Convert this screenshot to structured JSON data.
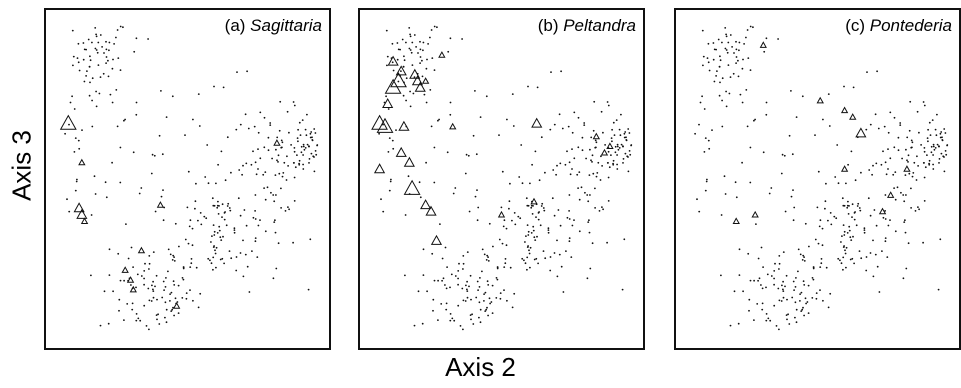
{
  "y_axis_label": "Axis 3",
  "x_axis_label": "Axis 2",
  "chart_data": [
    {
      "type": "scatter",
      "title": "(a) Sagittaria",
      "title_prefix": "(a)",
      "title_species": "Sagittaria",
      "xlabel": "Axis 2",
      "ylabel": "Axis 3",
      "marker_background": "dot",
      "marker_occurrence": "triangle (size = abundance)",
      "occurrences": [
        {
          "x": 0.06,
          "y": 0.67,
          "size": 3
        },
        {
          "x": 0.11,
          "y": 0.55,
          "size": 1
        },
        {
          "x": 0.1,
          "y": 0.41,
          "size": 2
        },
        {
          "x": 0.11,
          "y": 0.39,
          "size": 2
        },
        {
          "x": 0.12,
          "y": 0.37,
          "size": 1
        },
        {
          "x": 0.27,
          "y": 0.22,
          "size": 1
        },
        {
          "x": 0.29,
          "y": 0.19,
          "size": 1
        },
        {
          "x": 0.3,
          "y": 0.16,
          "size": 1
        },
        {
          "x": 0.46,
          "y": 0.11,
          "size": 1
        },
        {
          "x": 0.83,
          "y": 0.61,
          "size": 1
        },
        {
          "x": 0.4,
          "y": 0.42,
          "size": 1
        },
        {
          "x": 0.33,
          "y": 0.28,
          "size": 1
        }
      ]
    },
    {
      "type": "scatter",
      "title": "(b) Peltandra",
      "title_prefix": "(b)",
      "title_species": "Peltandra",
      "xlabel": "Axis 2",
      "ylabel": "Axis 3",
      "marker_background": "dot",
      "marker_occurrence": "triangle (size = abundance)",
      "occurrences": [
        {
          "x": 0.1,
          "y": 0.86,
          "size": 2
        },
        {
          "x": 0.13,
          "y": 0.83,
          "size": 2
        },
        {
          "x": 0.12,
          "y": 0.8,
          "size": 3
        },
        {
          "x": 0.1,
          "y": 0.78,
          "size": 3
        },
        {
          "x": 0.18,
          "y": 0.82,
          "size": 2
        },
        {
          "x": 0.19,
          "y": 0.8,
          "size": 2
        },
        {
          "x": 0.2,
          "y": 0.78,
          "size": 2
        },
        {
          "x": 0.22,
          "y": 0.8,
          "size": 1
        },
        {
          "x": 0.08,
          "y": 0.73,
          "size": 2
        },
        {
          "x": 0.05,
          "y": 0.67,
          "size": 3
        },
        {
          "x": 0.07,
          "y": 0.66,
          "size": 3
        },
        {
          "x": 0.14,
          "y": 0.66,
          "size": 2
        },
        {
          "x": 0.13,
          "y": 0.58,
          "size": 2
        },
        {
          "x": 0.16,
          "y": 0.55,
          "size": 2
        },
        {
          "x": 0.05,
          "y": 0.53,
          "size": 2
        },
        {
          "x": 0.17,
          "y": 0.47,
          "size": 3
        },
        {
          "x": 0.22,
          "y": 0.42,
          "size": 2
        },
        {
          "x": 0.24,
          "y": 0.4,
          "size": 2
        },
        {
          "x": 0.26,
          "y": 0.31,
          "size": 2
        },
        {
          "x": 0.32,
          "y": 0.66,
          "size": 1
        },
        {
          "x": 0.63,
          "y": 0.67,
          "size": 2
        },
        {
          "x": 0.85,
          "y": 0.63,
          "size": 1
        },
        {
          "x": 0.9,
          "y": 0.6,
          "size": 1
        },
        {
          "x": 0.88,
          "y": 0.58,
          "size": 1
        },
        {
          "x": 0.62,
          "y": 0.43,
          "size": 1
        },
        {
          "x": 0.5,
          "y": 0.39,
          "size": 1
        },
        {
          "x": 0.28,
          "y": 0.88,
          "size": 1
        }
      ]
    },
    {
      "type": "scatter",
      "title": "(c) Pontederia",
      "title_prefix": "(c)",
      "title_species": "Pontederia",
      "xlabel": "Axis 2",
      "ylabel": "Axis 3",
      "marker_background": "dot",
      "marker_occurrence": "triangle (size = abundance)",
      "occurrences": [
        {
          "x": 0.3,
          "y": 0.91,
          "size": 1
        },
        {
          "x": 0.51,
          "y": 0.74,
          "size": 1
        },
        {
          "x": 0.6,
          "y": 0.71,
          "size": 1
        },
        {
          "x": 0.63,
          "y": 0.69,
          "size": 1
        },
        {
          "x": 0.66,
          "y": 0.64,
          "size": 2
        },
        {
          "x": 0.6,
          "y": 0.53,
          "size": 1
        },
        {
          "x": 0.83,
          "y": 0.53,
          "size": 1
        },
        {
          "x": 0.77,
          "y": 0.45,
          "size": 1
        },
        {
          "x": 0.74,
          "y": 0.4,
          "size": 1
        },
        {
          "x": 0.27,
          "y": 0.39,
          "size": 1
        },
        {
          "x": 0.2,
          "y": 0.37,
          "size": 1
        }
      ]
    }
  ]
}
